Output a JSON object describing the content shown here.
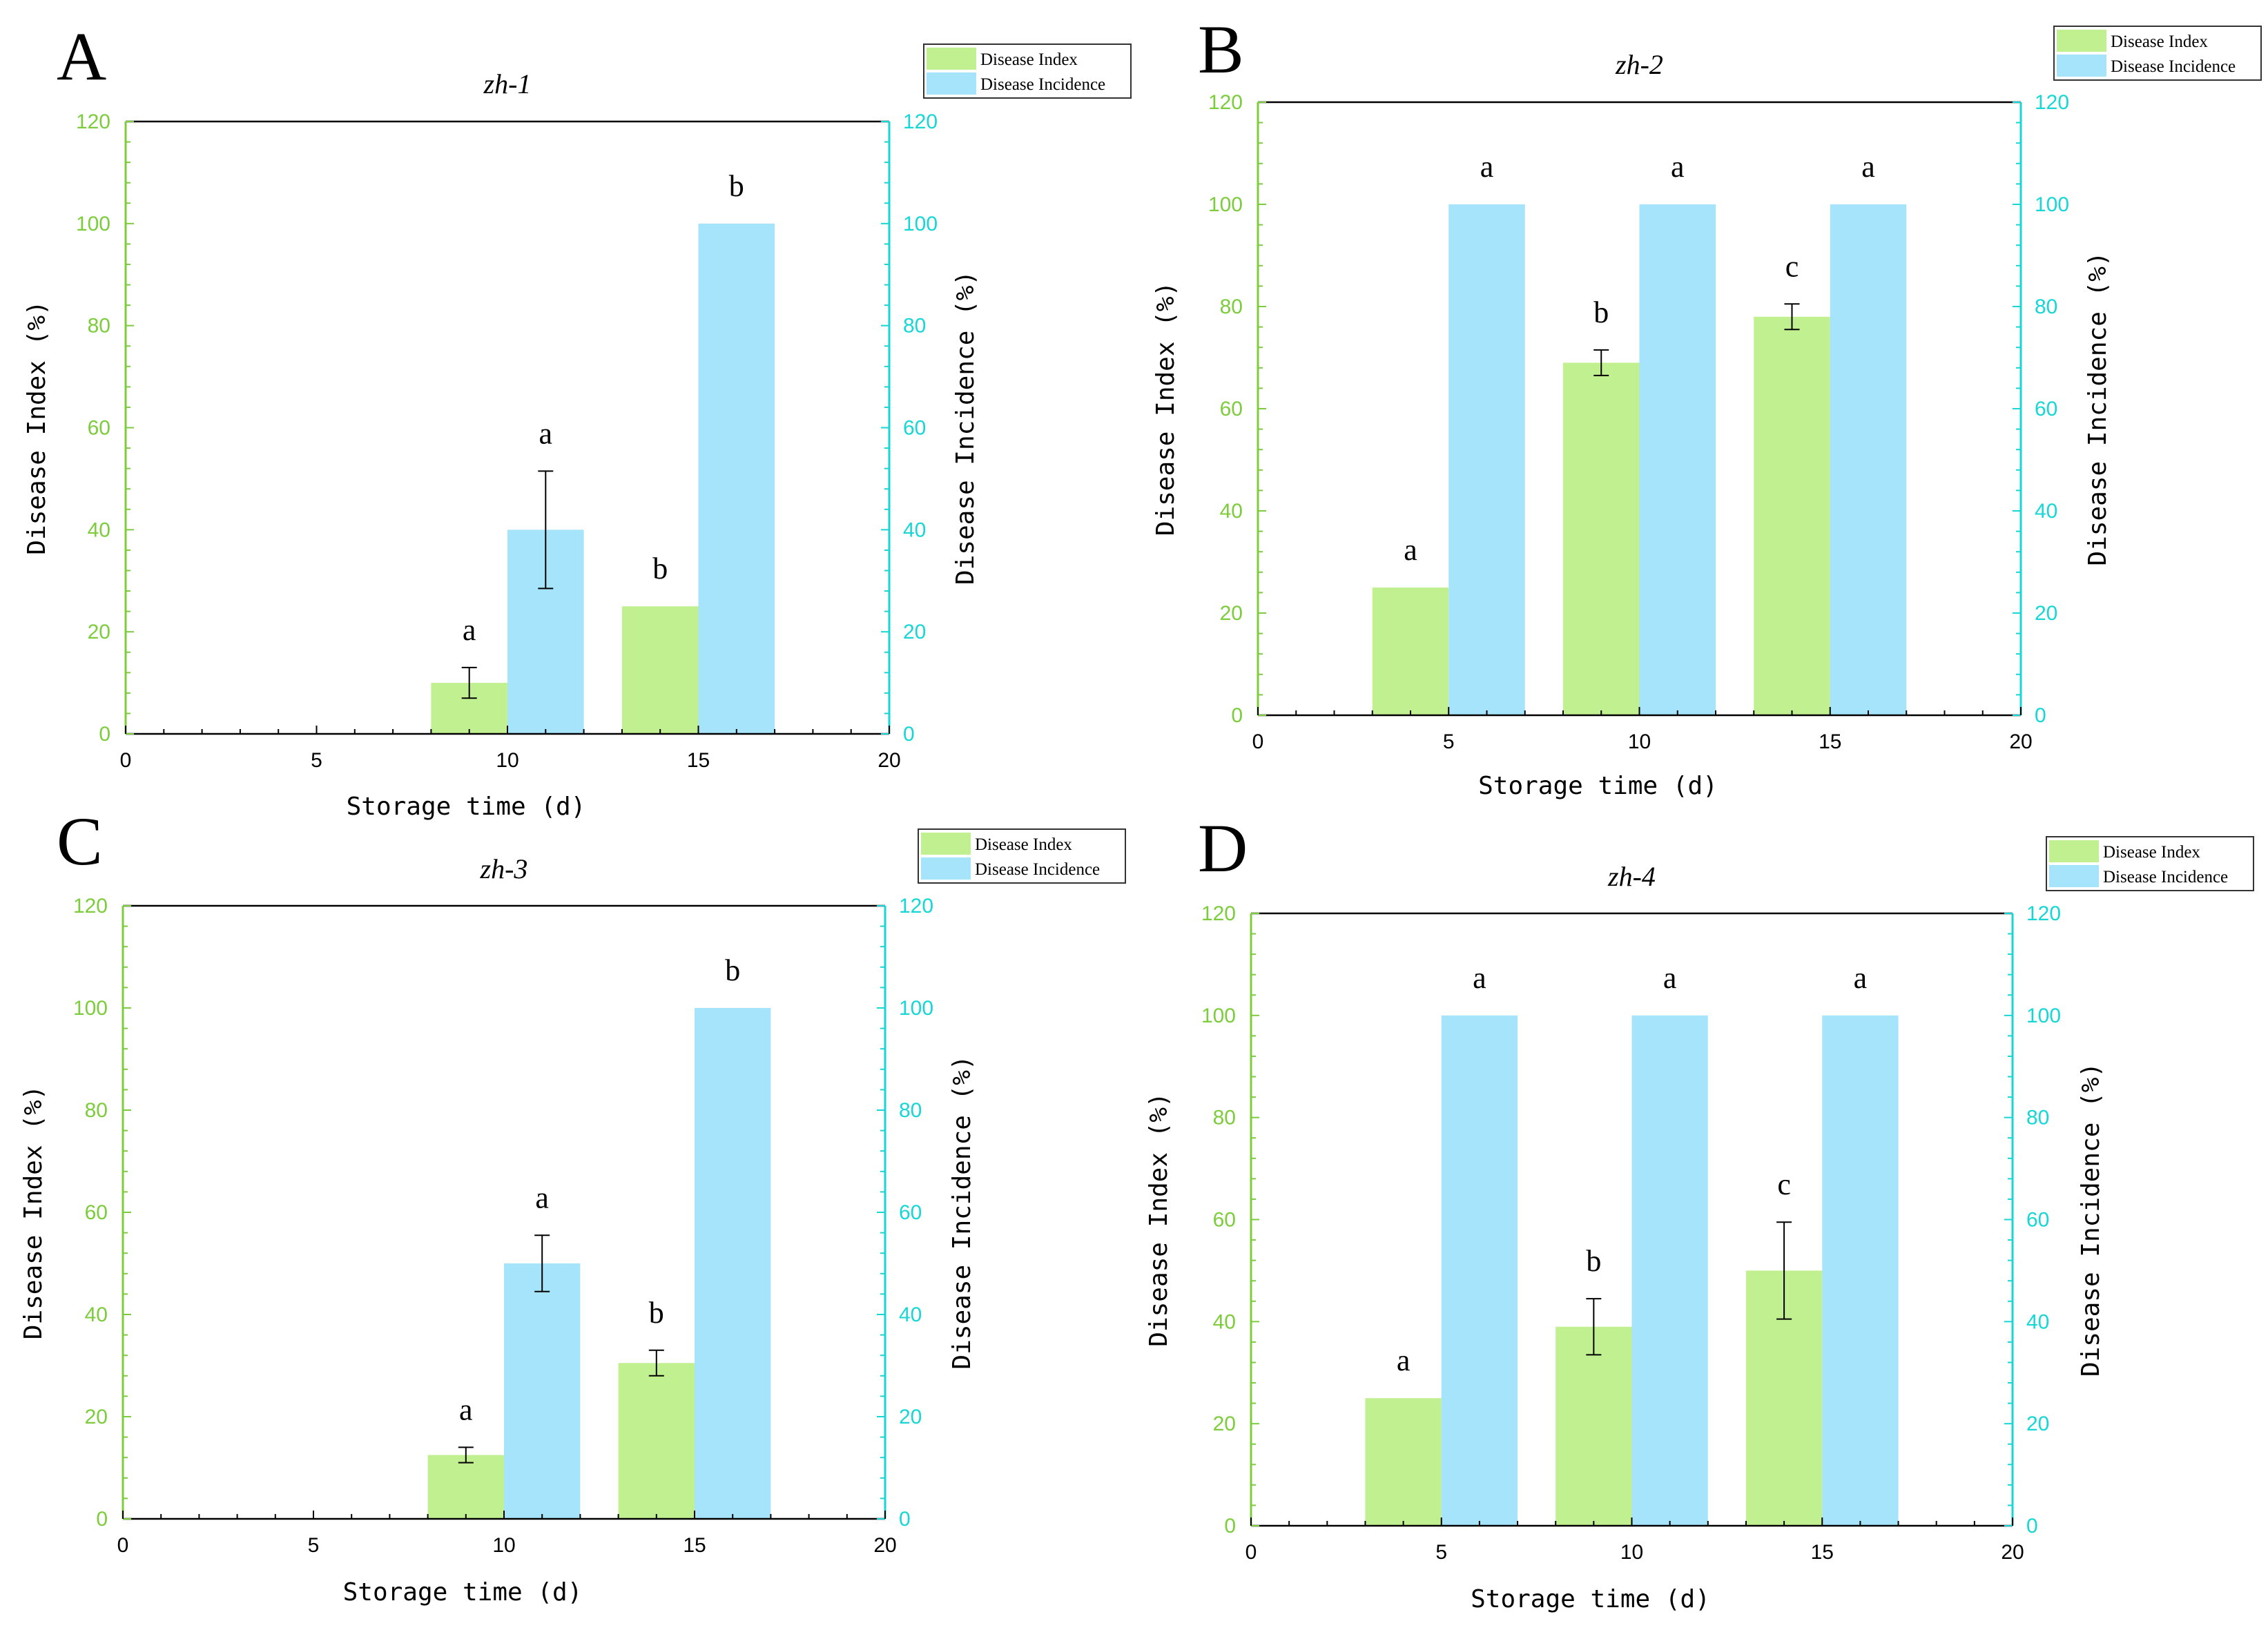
{
  "legend": {
    "index_label": "Disease Index",
    "incidence_label": "Disease Incidence"
  },
  "colors": {
    "index_bar": "#c0f090",
    "incidence_bar": "#a6e4fb",
    "left_axis": "#7ccc3c",
    "right_axis": "#16d6d6",
    "frame": "#000000"
  },
  "chart_data": [
    {
      "panel": "A",
      "type": "bar",
      "title": "zh-1",
      "xlabel": "Storage time (d)",
      "ylabel_left": "Disease Index (%)",
      "ylabel_right": "Disease Incidence (%)",
      "xlim": [
        0,
        20
      ],
      "ylim": [
        0,
        120
      ],
      "x_ticks": [
        "0",
        "5",
        "10",
        "15",
        "20"
      ],
      "y_ticks": [
        "0",
        "20",
        "40",
        "60",
        "80",
        "100",
        "120"
      ],
      "categories": [
        "5",
        "10",
        "15"
      ],
      "series": [
        {
          "name": "Disease Index",
          "axis": "left",
          "x": [
            4,
            9,
            14
          ],
          "values": [
            0,
            10,
            25
          ],
          "errors": [
            0,
            3,
            0
          ],
          "sig": [
            "",
            "a",
            "b"
          ]
        },
        {
          "name": "Disease Incidence",
          "axis": "right",
          "x": [
            6,
            11,
            16
          ],
          "values": [
            0,
            40,
            100
          ],
          "errors": [
            0,
            11.5,
            0
          ],
          "sig": [
            "",
            "a",
            "b"
          ]
        }
      ]
    },
    {
      "panel": "B",
      "type": "bar",
      "title": "zh-2",
      "xlabel": "Storage time (d)",
      "ylabel_left": "Disease Index (%)",
      "ylabel_right": "Disease Incidence (%)",
      "xlim": [
        0,
        20
      ],
      "ylim": [
        0,
        120
      ],
      "x_ticks": [
        "0",
        "5",
        "10",
        "15",
        "20"
      ],
      "y_ticks": [
        "0",
        "20",
        "40",
        "60",
        "80",
        "100",
        "120"
      ],
      "categories": [
        "5",
        "10",
        "15"
      ],
      "series": [
        {
          "name": "Disease Index",
          "axis": "left",
          "x": [
            4,
            9,
            14
          ],
          "values": [
            25,
            69,
            78
          ],
          "errors": [
            0,
            2.5,
            2.5
          ],
          "sig": [
            "a",
            "b",
            "c"
          ]
        },
        {
          "name": "Disease Incidence",
          "axis": "right",
          "x": [
            6,
            11,
            16
          ],
          "values": [
            100,
            100,
            100
          ],
          "errors": [
            0,
            0,
            0
          ],
          "sig": [
            "a",
            "a",
            "a"
          ]
        }
      ]
    },
    {
      "panel": "C",
      "type": "bar",
      "title": "zh-3",
      "xlabel": "Storage time (d)",
      "ylabel_left": "Disease Index (%)",
      "ylabel_right": "Disease Incidence (%)",
      "xlim": [
        0,
        20
      ],
      "ylim": [
        0,
        120
      ],
      "x_ticks": [
        "0",
        "5",
        "10",
        "15",
        "20"
      ],
      "y_ticks": [
        "0",
        "20",
        "40",
        "60",
        "80",
        "100",
        "120"
      ],
      "categories": [
        "5",
        "10",
        "15"
      ],
      "series": [
        {
          "name": "Disease Index",
          "axis": "left",
          "x": [
            4,
            9,
            14
          ],
          "values": [
            0,
            12.5,
            30.5
          ],
          "errors": [
            0,
            1.5,
            2.5
          ],
          "sig": [
            "",
            "a",
            "b"
          ]
        },
        {
          "name": "Disease Incidence",
          "axis": "right",
          "x": [
            6,
            11,
            16
          ],
          "values": [
            0,
            50,
            100
          ],
          "errors": [
            0,
            5.5,
            0
          ],
          "sig": [
            "",
            "a",
            "b"
          ]
        }
      ]
    },
    {
      "panel": "D",
      "type": "bar",
      "title": "zh-4",
      "xlabel": "Storage time (d)",
      "ylabel_left": "Disease Index (%)",
      "ylabel_right": "Disease Incidence (%)",
      "xlim": [
        0,
        20
      ],
      "ylim": [
        0,
        120
      ],
      "x_ticks": [
        "0",
        "5",
        "10",
        "15",
        "20"
      ],
      "y_ticks": [
        "0",
        "20",
        "40",
        "60",
        "80",
        "100",
        "120"
      ],
      "categories": [
        "5",
        "10",
        "15"
      ],
      "series": [
        {
          "name": "Disease Index",
          "axis": "left",
          "x": [
            4,
            9,
            14
          ],
          "values": [
            25,
            39,
            50
          ],
          "errors": [
            0,
            5.5,
            9.5
          ],
          "sig": [
            "a",
            "b",
            "c"
          ]
        },
        {
          "name": "Disease Incidence",
          "axis": "right",
          "x": [
            6,
            11,
            16
          ],
          "values": [
            100,
            100,
            100
          ],
          "errors": [
            0,
            0,
            0
          ],
          "sig": [
            "a",
            "a",
            "a"
          ]
        }
      ]
    }
  ]
}
